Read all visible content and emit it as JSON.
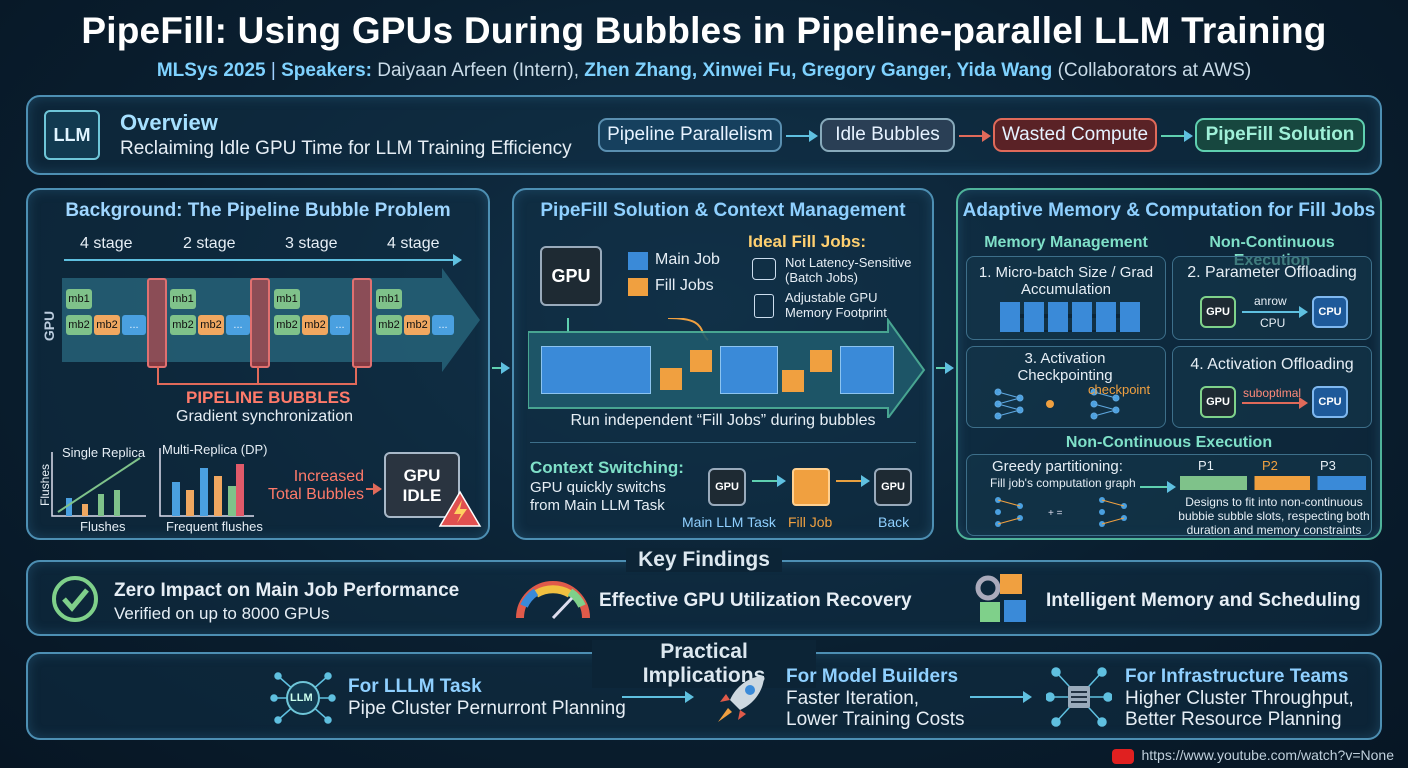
{
  "header": {
    "title": "PipeFill: Using GPUs During Bubbles in Pipeline-parallel LLM Training",
    "venue": "MLSys 2025",
    "speakers_label": "Speakers:",
    "intern": "Daiyaan Arfeen (Intern),",
    "collaborators": "Zhen Zhang, Xinwei Fu, Gregory Ganger, Yida Wang",
    "collab_note": "(Collaborators at AWS)"
  },
  "overview": {
    "icon_label": "LLM",
    "title": "Overview",
    "subtitle": "Reclaiming Idle GPU Time for LLM Training Efficiency",
    "flow": [
      "Pipeline Parallelism",
      "Idle Bubbles",
      "Wasted Compute",
      "PipeFill Solution"
    ]
  },
  "background": {
    "title": "Background: The Pipeline Bubble Problem",
    "stages": [
      "4 stage",
      "2 stage",
      "3 stage",
      "4 stage"
    ],
    "gpu_label": "GPU",
    "chips": {
      "mb1": "mb1",
      "mb2": "mb2",
      "dots": "..."
    },
    "bubbles_label": "PIPELINE BUBBLES",
    "grad_sync": "Gradient synchronization",
    "chart1_title": "Single Replica",
    "chart1_ylabel": "Flushes",
    "chart1_xlabel": "Flushes",
    "chart2_title": "Multi-Replica (DP)",
    "chart2_xlabel": "Frequent flushes",
    "increased": "Increased Total Bubbles",
    "gpu_idle": "GPU IDLE",
    "colors": {
      "mb1": "#7fc28a",
      "mb2": "#f0a760",
      "dots": "#4aa0e0",
      "bubble": "#e07070"
    }
  },
  "solution": {
    "title": "PipeFill Solution & Context Management",
    "gpu_label": "GPU",
    "legend_main": "Main Job",
    "legend_fill": "Fill Jobs",
    "ideal_title": "Ideal Fill Jobs:",
    "ideal_1": "Not Latency-Sensitive (Batch Jobs)",
    "ideal_2": "Adjustable GPU Memory Footprint",
    "run_caption": "Run independent “Fill Jobs” during bubbles",
    "context_title": "Context Switching:",
    "context_text": "GPU quickly switchs from Main LLM Task",
    "cs_main": "Main LLM Task",
    "cs_fill": "Fill Job",
    "cs_back": "Back",
    "cs_gpu": "GPU"
  },
  "adaptive": {
    "title": "Adaptive Memory & Computation for Fill Jobs",
    "mem_head": "Memory Management",
    "noncont_head": "Non-Continuous Execution",
    "box1": "1. Micro-batch Size / Grad Accumulation",
    "box2": "2. Parameter Offloading",
    "box2_arrow": "anrow",
    "box2_sub": "CPU",
    "box3": "3. Activation Checkpointing",
    "box3_tag": "checkpoint",
    "box4": "4. Activation Offloading",
    "box4_tag": "suboptimal",
    "gpu": "GPU",
    "cpu": "CPU",
    "nce_title": "Non-Continuous Execution",
    "greedy": "Greedy partitioning:",
    "greedy_sub": "Fill job's computation graph",
    "parts": [
      "P1",
      "P2",
      "P3"
    ],
    "design_note": "Designs to fit into non-continuous bubbie subble slots, respecting both duration and memory constraints"
  },
  "findings": {
    "title": "Key Findings",
    "f1_title": "Zero Impact on Main Job Performance",
    "f1_sub": "Verified on up to 8000 GPUs",
    "f2_title": "Effective GPU Utilization Recovery",
    "f3_title": "Intelligent Memory and Scheduling"
  },
  "implications": {
    "title": "Practical Implications",
    "i1_title": "For LLLM Task",
    "i1_sub": "Pipe Cluster Pernurront Planning",
    "i1_icon": "LLM",
    "i2_title": "For Model Builders",
    "i2_sub1": "Faster Iteration,",
    "i2_sub2": "Lower Training Costs",
    "i3_title": "For Infrastructure Teams",
    "i3_sub1": "Higher Cluster Throughput,",
    "i3_sub2": "Better Resource Planning"
  },
  "footer": {
    "url": "https://www.youtube.com/watch?v=None"
  }
}
